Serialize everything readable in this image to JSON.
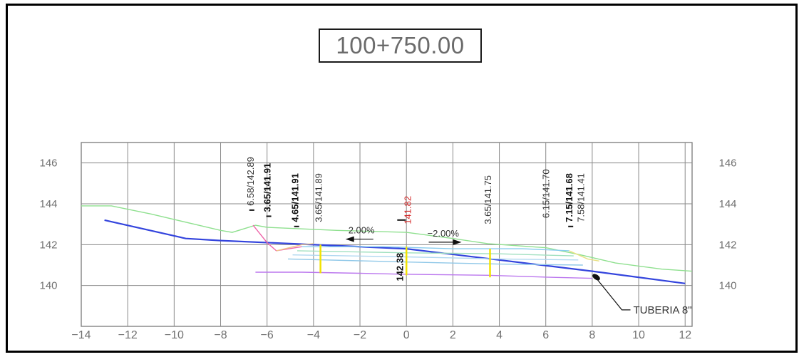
{
  "station_label": "100+750.00",
  "chart_data": {
    "type": "line",
    "xlim": [
      -14,
      12.3
    ],
    "ylim": [
      138,
      147
    ],
    "x_ticks": [
      {
        "v": -14,
        "t": "−14"
      },
      {
        "v": -12,
        "t": "−12"
      },
      {
        "v": -10,
        "t": "−10"
      },
      {
        "v": -8,
        "t": "−8"
      },
      {
        "v": -6,
        "t": "−6"
      },
      {
        "v": -4,
        "t": "−4"
      },
      {
        "v": -2,
        "t": "−2"
      },
      {
        "v": 0,
        "t": "0"
      },
      {
        "v": 2,
        "t": "2"
      },
      {
        "v": 4,
        "t": "4"
      },
      {
        "v": 6,
        "t": "6"
      },
      {
        "v": 8,
        "t": "8"
      },
      {
        "v": 10,
        "t": "10"
      },
      {
        "v": 12,
        "t": "12"
      }
    ],
    "y_ticks": [
      {
        "v": 140,
        "t": "140"
      },
      {
        "v": 142,
        "t": "142"
      },
      {
        "v": 144,
        "t": "144"
      },
      {
        "v": 146,
        "t": "146"
      }
    ],
    "series": [
      {
        "color": "#3344dd",
        "points": [
          [
            -13,
            143.2
          ],
          [
            -9.5,
            142.3
          ],
          [
            -8,
            142.2
          ],
          [
            0,
            141.8
          ],
          [
            8,
            140.7
          ],
          [
            12,
            140.1
          ]
        ]
      },
      {
        "color": "#8fe08f",
        "points": [
          [
            -14,
            143.9
          ],
          [
            -12.7,
            143.9
          ],
          [
            -11,
            143.5
          ],
          [
            -8,
            142.7
          ],
          [
            -7.5,
            142.6
          ],
          [
            -6.5,
            142.95
          ],
          [
            -6,
            142.85
          ],
          [
            -3,
            142.7
          ],
          [
            0,
            142.6
          ],
          [
            2,
            142.3
          ],
          [
            3.5,
            142.05
          ],
          [
            6,
            141.85
          ],
          [
            7.5,
            141.5
          ],
          [
            9,
            141.1
          ],
          [
            11,
            140.8
          ],
          [
            12.3,
            140.7
          ]
        ]
      },
      {
        "color": "#ee66aa",
        "points": [
          [
            -6.6,
            142.95
          ],
          [
            -6,
            142.1
          ],
          [
            -5.6,
            141.7
          ],
          [
            -4.5,
            141.9
          ]
        ]
      },
      {
        "color": "#bb77ee",
        "points": [
          [
            -6.5,
            140.65
          ],
          [
            -4.5,
            140.65
          ],
          [
            -2,
            140.6
          ],
          [
            0,
            140.55
          ],
          [
            3.5,
            140.5
          ],
          [
            6.3,
            140.4
          ],
          [
            8,
            140.35
          ]
        ]
      },
      {
        "color": "#88ccee",
        "points": [
          [
            -4.5,
            141.9
          ],
          [
            -1,
            141.9
          ],
          [
            2,
            141.8
          ],
          [
            5,
            141.8
          ],
          [
            7,
            141.7
          ]
        ]
      },
      {
        "color": "#a0e0c0",
        "points": [
          [
            -4.7,
            141.7
          ],
          [
            0,
            141.6
          ],
          [
            4,
            141.55
          ],
          [
            7.2,
            141.45
          ]
        ]
      },
      {
        "color": "#b0d8f0",
        "points": [
          [
            -4.9,
            141.5
          ],
          [
            0,
            141.4
          ],
          [
            4,
            141.3
          ],
          [
            7.4,
            141.25
          ]
        ]
      },
      {
        "color": "#90c8e8",
        "points": [
          [
            -5.1,
            141.3
          ],
          [
            0,
            141.15
          ],
          [
            4,
            141.05
          ],
          [
            7.6,
            141.0
          ]
        ]
      },
      {
        "color": "#eec888",
        "points": [
          [
            -5.6,
            141.7
          ],
          [
            -4.5,
            142.0
          ],
          [
            -4.0,
            142.05
          ]
        ]
      },
      {
        "color": "#e8e080",
        "points": [
          [
            7.0,
            141.7
          ],
          [
            7.8,
            141.3
          ],
          [
            8.3,
            141.2
          ]
        ]
      }
    ],
    "verticals": [
      {
        "x": -3.7,
        "y1": 140.6,
        "y2": 142.0,
        "color": "#f2e200"
      },
      {
        "x": 0,
        "y1": 140.5,
        "y2": 141.9,
        "color": "#f2e200"
      },
      {
        "x": 3.6,
        "y1": 140.4,
        "y2": 141.8,
        "color": "#f2e200"
      }
    ],
    "annotations": {
      "top_labels": [
        {
          "x": -6.58,
          "y": 143.9,
          "text": "6.58/142.89",
          "style": "normal"
        },
        {
          "x": -5.85,
          "y": 143.6,
          "text": "3.65/141.91",
          "style": "bold"
        },
        {
          "x": -4.65,
          "y": 143.1,
          "text": "4.65/141.91",
          "style": "bold"
        },
        {
          "x": -3.65,
          "y": 143.1,
          "text": "3.65/141.89",
          "style": "normal"
        },
        {
          "x": 0.2,
          "y": 143.0,
          "text": "141.82",
          "style": "red"
        },
        {
          "x": 3.65,
          "y": 143.0,
          "text": "3.65/141.75",
          "style": "normal"
        },
        {
          "x": 6.15,
          "y": 143.3,
          "text": "6.15/141.70",
          "style": "normal"
        },
        {
          "x": 7.15,
          "y": 143.1,
          "text": "7.15/141.68",
          "style": "bold"
        },
        {
          "x": 7.65,
          "y": 143.1,
          "text": "7.58/141.41",
          "style": "normal"
        }
      ],
      "low_label": {
        "x": -0.15,
        "y": 141.6,
        "text": "142.38"
      },
      "slopes": [
        {
          "x": -2.5,
          "y": 142.55,
          "text": "2.00%",
          "arrow_dir": "left"
        },
        {
          "x": 0.9,
          "y": 142.4,
          "text": "−2.00%",
          "arrow_dir": "right"
        }
      ],
      "pipe_label": {
        "text": "TUBERIA 8\"",
        "x": 8.05,
        "y": 140.55
      }
    }
  }
}
